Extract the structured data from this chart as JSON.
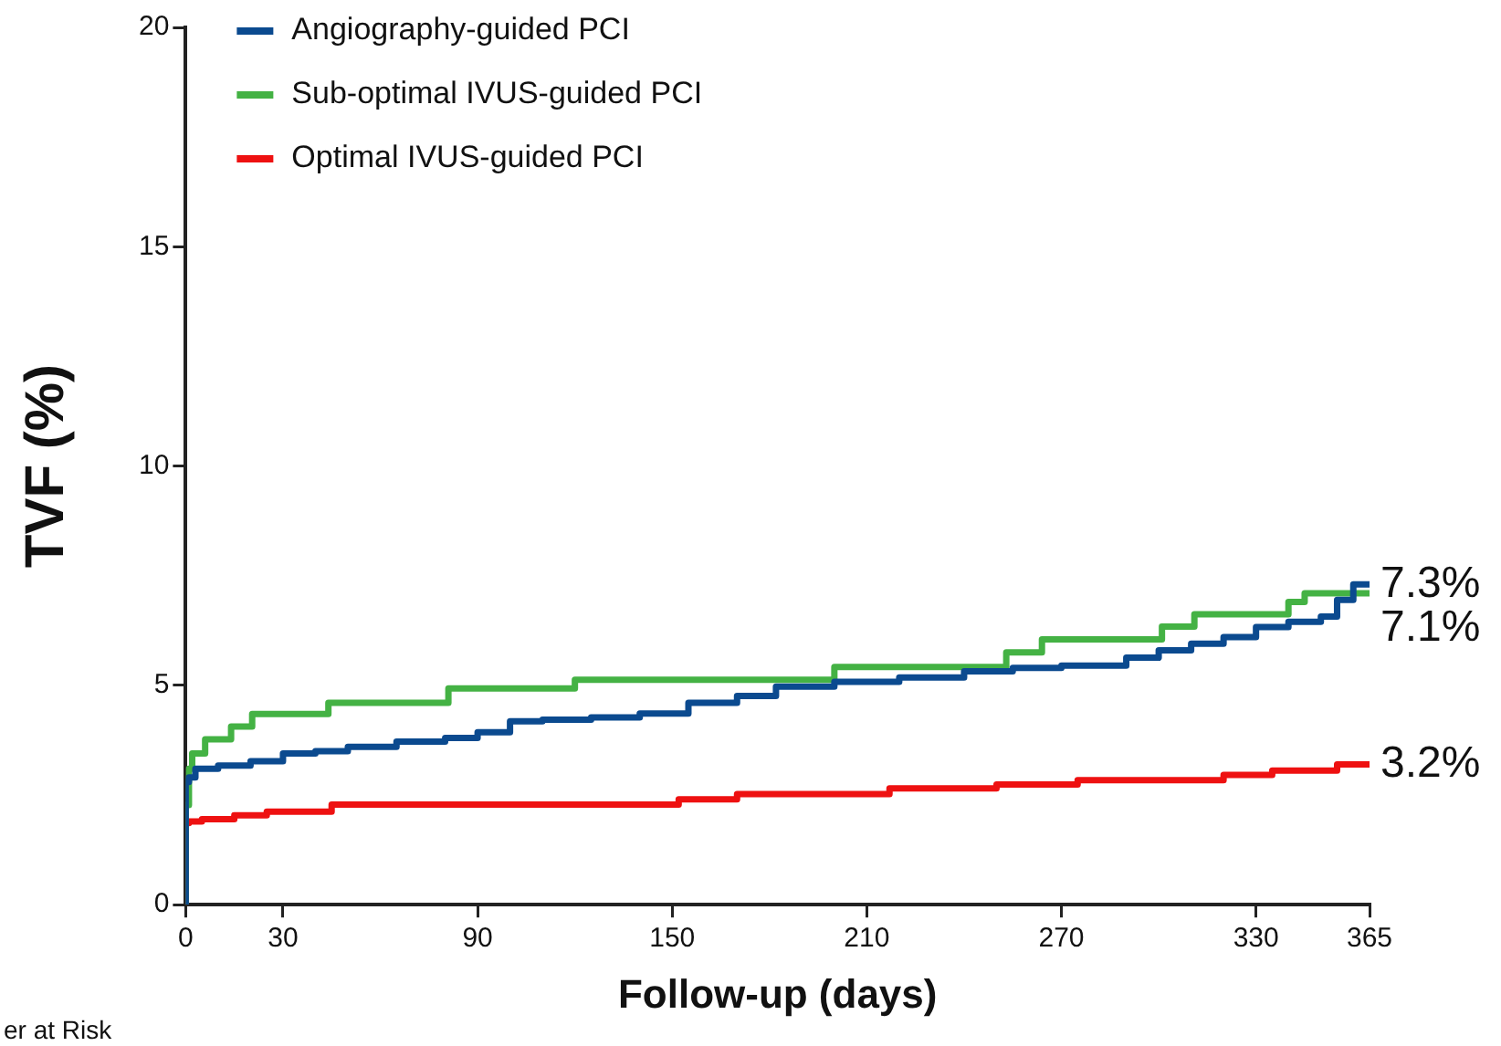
{
  "chart_data": {
    "type": "step",
    "xlabel": "Follow-up (days)",
    "ylabel": "TVF (%)",
    "xlim": [
      0,
      365
    ],
    "xticks": [
      0,
      30,
      90,
      150,
      210,
      270,
      330,
      365
    ],
    "ylim": [
      0,
      20
    ],
    "yticks": [
      0,
      5,
      10,
      15,
      20
    ],
    "grid": false,
    "legend": "top left",
    "line_style": "solid",
    "marker": "none",
    "series": [
      {
        "name": "Angiography-guided PCI",
        "color": "#0b4a8f",
        "x": [
          0,
          1,
          3,
          10,
          20,
          30,
          40,
          50,
          65,
          80,
          90,
          100,
          110,
          125,
          140,
          155,
          170,
          182,
          200,
          220,
          240,
          255,
          270,
          290,
          300,
          310,
          320,
          330,
          340,
          350,
          355,
          360,
          365
        ],
        "values": [
          0,
          2.8,
          2.9,
          3.1,
          3.17,
          3.27,
          3.45,
          3.5,
          3.6,
          3.72,
          3.8,
          3.93,
          4.18,
          4.22,
          4.27,
          4.36,
          4.6,
          4.76,
          4.97,
          5.08,
          5.18,
          5.32,
          5.4,
          5.45,
          5.63,
          5.8,
          5.95,
          6.1,
          6.33,
          6.45,
          6.57,
          6.95,
          7.3
        ]
      },
      {
        "name": "Sub-optimal IVUS-guided PCI",
        "color": "#44b244",
        "x": [
          0,
          1,
          2,
          3,
          6,
          14,
          20.5,
          44,
          81,
          120,
          200,
          253,
          264,
          301,
          311,
          340,
          345,
          364,
          365
        ],
        "values": [
          0,
          2.27,
          3.1,
          3.45,
          3.45,
          3.77,
          4.06,
          4.35,
          4.6,
          4.93,
          5.13,
          5.42,
          5.75,
          6.05,
          6.34,
          6.62,
          6.9,
          7.1,
          7.1
        ]
      },
      {
        "name": "Optimal IVUS-guided PCI",
        "color": "#ee1111",
        "x": [
          0,
          1,
          5,
          15,
          25,
          45,
          152,
          170,
          217,
          250,
          275,
          320,
          335,
          355,
          365
        ],
        "values": [
          0,
          1.86,
          1.9,
          1.95,
          2.04,
          2.12,
          2.28,
          2.4,
          2.52,
          2.65,
          2.74,
          2.84,
          2.96,
          3.06,
          3.2
        ]
      }
    ],
    "annotations": [
      "7.3%",
      "7.1%",
      "3.2%",
      "er at Risk"
    ]
  }
}
